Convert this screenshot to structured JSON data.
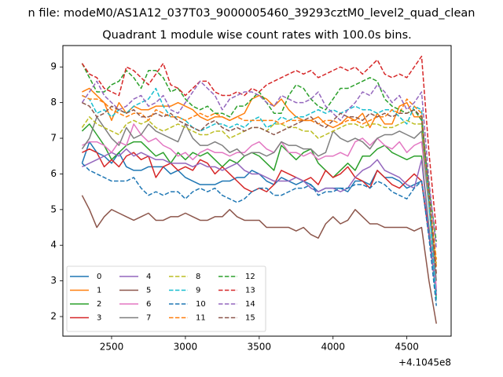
{
  "figure": {
    "suptitle": "n file: modeM0/AS1A12_037T03_9000005460_39293cztM0_level2_quad_clean",
    "background": "#ffffff"
  },
  "chart_data": {
    "type": "line",
    "title": "Quadrant 1 module wise count rates with 100.0s bins.",
    "xlabel": "",
    "ylabel": "",
    "x_offset_label": "+4.1045e8",
    "xlim": [
      2170,
      4800
    ],
    "ylim": [
      1.45,
      9.6
    ],
    "xticks": [
      2500,
      3000,
      3500,
      4000,
      4500
    ],
    "yticks": [
      2,
      3,
      4,
      5,
      6,
      7,
      8,
      9
    ],
    "grid": false,
    "legend_position": "lower-left",
    "legend_columns": 4,
    "x": [
      2300,
      2350,
      2400,
      2450,
      2500,
      2550,
      2600,
      2650,
      2700,
      2750,
      2800,
      2850,
      2900,
      2950,
      3000,
      3050,
      3100,
      3150,
      3200,
      3250,
      3300,
      3350,
      3400,
      3450,
      3500,
      3550,
      3600,
      3650,
      3700,
      3750,
      3800,
      3850,
      3900,
      3950,
      4000,
      4050,
      4100,
      4150,
      4200,
      4250,
      4300,
      4350,
      4400,
      4450,
      4500,
      4550,
      4600,
      4650,
      4700
    ],
    "series": [
      {
        "name": "0",
        "color": "#1f77b4",
        "style": "solid",
        "values": [
          6.3,
          6.9,
          6.6,
          6.5,
          6.3,
          6.6,
          6.2,
          6.1,
          6.1,
          6.2,
          6.2,
          6.2,
          6.0,
          6.1,
          5.9,
          5.8,
          5.7,
          5.7,
          5.7,
          5.8,
          5.8,
          5.9,
          5.9,
          6.1,
          6.0,
          5.8,
          5.7,
          5.9,
          5.8,
          5.7,
          5.8,
          5.7,
          5.5,
          5.6,
          5.6,
          5.6,
          5.5,
          5.8,
          5.8,
          5.7,
          6.1,
          5.9,
          5.9,
          5.8,
          5.6,
          5.7,
          5.8,
          4.3,
          2.7
        ]
      },
      {
        "name": "1",
        "color": "#ff7f0e",
        "style": "solid",
        "values": [
          8.3,
          8.4,
          8.2,
          8.0,
          7.5,
          8.0,
          7.7,
          7.9,
          7.8,
          7.8,
          7.9,
          7.9,
          7.9,
          8.0,
          7.9,
          7.8,
          7.6,
          7.5,
          7.6,
          7.6,
          7.5,
          7.6,
          7.7,
          8.1,
          8.2,
          8.1,
          7.9,
          8.1,
          7.8,
          7.6,
          7.5,
          7.5,
          7.6,
          7.4,
          7.3,
          7.4,
          7.6,
          7.5,
          7.7,
          7.3,
          7.7,
          7.4,
          7.4,
          7.9,
          8.0,
          7.6,
          7.6,
          5.3,
          3.4
        ]
      },
      {
        "name": "2",
        "color": "#2ca02c",
        "style": "solid",
        "values": [
          7.2,
          7.4,
          7.1,
          6.8,
          6.4,
          6.6,
          6.8,
          6.9,
          6.9,
          6.7,
          6.5,
          6.6,
          6.3,
          6.6,
          6.4,
          6.6,
          6.5,
          6.6,
          6.4,
          6.2,
          6.4,
          6.3,
          6.5,
          6.6,
          6.5,
          6.3,
          6.1,
          6.8,
          6.6,
          6.4,
          6.6,
          6.7,
          6.3,
          6.1,
          5.9,
          6.1,
          6.3,
          6.1,
          6.5,
          6.5,
          6.7,
          6.8,
          6.6,
          6.5,
          6.4,
          6.5,
          6.5,
          4.5,
          2.5
        ]
      },
      {
        "name": "3",
        "color": "#d62728",
        "style": "solid",
        "values": [
          6.6,
          6.7,
          6.6,
          6.2,
          6.4,
          6.2,
          6.5,
          6.6,
          6.4,
          6.5,
          5.9,
          6.2,
          6.3,
          6.1,
          6.2,
          6.1,
          6.4,
          6.3,
          6.0,
          6.2,
          6.0,
          5.8,
          5.6,
          5.5,
          5.6,
          5.5,
          5.7,
          6.1,
          6.0,
          5.9,
          5.8,
          5.9,
          5.7,
          6.1,
          5.9,
          6.0,
          6.2,
          5.9,
          5.8,
          5.6,
          6.1,
          5.9,
          5.7,
          5.6,
          5.8,
          6.0,
          5.8,
          4.3,
          2.6
        ]
      },
      {
        "name": "4",
        "color": "#9467bd",
        "style": "solid",
        "values": [
          6.2,
          6.3,
          6.4,
          6.5,
          6.6,
          6.5,
          6.7,
          6.5,
          6.6,
          6.5,
          6.4,
          6.4,
          6.3,
          6.3,
          6.3,
          6.2,
          6.3,
          6.2,
          6.2,
          6.1,
          6.2,
          6.3,
          6.1,
          6.0,
          6.0,
          5.9,
          5.8,
          5.8,
          5.8,
          5.9,
          5.8,
          5.6,
          5.5,
          5.6,
          5.6,
          5.5,
          5.6,
          5.9,
          6.1,
          6.2,
          6.4,
          6.1,
          6.0,
          5.9,
          5.7,
          5.6,
          6.4,
          4.4,
          2.6
        ]
      },
      {
        "name": "5",
        "color": "#8c564b",
        "style": "solid",
        "values": [
          5.4,
          5.0,
          4.5,
          4.8,
          5.0,
          4.9,
          4.8,
          4.7,
          4.8,
          4.9,
          4.7,
          4.7,
          4.8,
          4.8,
          4.9,
          4.8,
          4.7,
          4.7,
          4.8,
          4.8,
          5.0,
          4.8,
          4.7,
          4.7,
          4.7,
          4.5,
          4.5,
          4.5,
          4.5,
          4.4,
          4.5,
          4.3,
          4.2,
          4.6,
          4.8,
          4.6,
          4.7,
          5.0,
          4.8,
          4.6,
          4.6,
          4.5,
          4.5,
          4.5,
          4.5,
          4.4,
          4.5,
          3.0,
          1.8
        ]
      },
      {
        "name": "6",
        "color": "#e377c2",
        "style": "solid",
        "values": [
          6.8,
          6.9,
          6.9,
          6.8,
          6.6,
          6.9,
          6.8,
          7.4,
          7.1,
          6.9,
          7.0,
          6.8,
          6.7,
          6.5,
          6.6,
          6.4,
          6.6,
          6.7,
          6.6,
          6.6,
          6.5,
          6.6,
          6.6,
          6.8,
          6.9,
          6.7,
          6.6,
          6.9,
          6.6,
          6.6,
          6.5,
          6.6,
          6.4,
          6.5,
          6.5,
          6.6,
          6.5,
          6.9,
          7.0,
          6.8,
          7.0,
          6.8,
          6.7,
          6.9,
          6.6,
          6.8,
          6.9,
          5.1,
          2.8
        ]
      },
      {
        "name": "7",
        "color": "#7f7f7f",
        "style": "solid",
        "values": [
          6.7,
          7.0,
          7.6,
          7.3,
          7.0,
          6.8,
          7.3,
          7.0,
          7.1,
          7.4,
          7.2,
          7.1,
          7.0,
          6.9,
          7.4,
          7.0,
          6.8,
          6.8,
          6.9,
          6.8,
          6.6,
          6.7,
          6.5,
          6.6,
          6.6,
          6.5,
          6.6,
          6.9,
          6.8,
          6.8,
          6.7,
          6.7,
          6.5,
          6.6,
          7.2,
          7.0,
          6.9,
          7.0,
          6.9,
          6.7,
          7.0,
          7.1,
          7.1,
          7.2,
          7.1,
          7.0,
          7.2,
          5.1,
          3.0
        ]
      },
      {
        "name": "8",
        "color": "#bcbd22",
        "style": "dashed",
        "values": [
          7.3,
          7.6,
          7.4,
          7.3,
          7.2,
          7.1,
          7.4,
          7.5,
          7.4,
          7.5,
          7.3,
          7.2,
          7.3,
          7.4,
          7.3,
          7.2,
          7.1,
          7.1,
          7.2,
          7.2,
          7.0,
          7.1,
          7.2,
          7.3,
          7.3,
          7.2,
          7.4,
          7.4,
          7.3,
          7.3,
          7.2,
          7.2,
          7.0,
          7.1,
          7.2,
          7.3,
          7.4,
          7.4,
          7.3,
          7.4,
          7.4,
          7.3,
          7.3,
          7.4,
          7.5,
          7.4,
          7.4,
          5.3,
          3.5
        ]
      },
      {
        "name": "9",
        "color": "#17becf",
        "style": "dashed",
        "values": [
          8.2,
          8.1,
          7.7,
          7.8,
          7.6,
          7.8,
          7.7,
          7.9,
          8.0,
          8.1,
          8.4,
          7.9,
          7.6,
          7.6,
          7.5,
          7.3,
          7.2,
          7.3,
          7.4,
          7.4,
          7.3,
          7.4,
          7.3,
          7.5,
          7.6,
          7.3,
          7.4,
          7.6,
          7.5,
          7.6,
          7.6,
          7.7,
          7.8,
          7.7,
          7.8,
          7.7,
          7.8,
          7.9,
          7.8,
          7.8,
          7.7,
          7.8,
          7.8,
          7.6,
          7.4,
          7.9,
          7.8,
          5.2,
          2.4
        ]
      },
      {
        "name": "10",
        "color": "#1f77b4",
        "style": "dashed",
        "values": [
          6.3,
          6.1,
          6.0,
          5.9,
          5.8,
          5.8,
          5.8,
          5.9,
          5.6,
          5.4,
          5.5,
          5.4,
          5.5,
          5.5,
          5.3,
          5.5,
          5.6,
          5.5,
          5.6,
          5.4,
          5.3,
          5.2,
          5.3,
          5.5,
          5.6,
          5.6,
          5.4,
          5.4,
          5.5,
          5.6,
          5.6,
          5.7,
          5.4,
          5.5,
          5.5,
          5.6,
          5.6,
          5.7,
          5.7,
          5.6,
          5.8,
          5.7,
          5.5,
          5.4,
          5.3,
          5.6,
          5.8,
          4.2,
          2.3
        ]
      },
      {
        "name": "11",
        "color": "#ff7f0e",
        "style": "dashed",
        "values": [
          8.2,
          8.1,
          8.1,
          8.0,
          7.8,
          7.7,
          7.6,
          7.7,
          7.7,
          7.5,
          7.8,
          7.7,
          7.6,
          7.6,
          7.5,
          7.6,
          7.7,
          7.6,
          7.7,
          7.6,
          7.5,
          7.6,
          7.5,
          7.5,
          7.5,
          7.5,
          7.5,
          7.4,
          7.5,
          7.5,
          7.5,
          7.5,
          7.4,
          7.5,
          7.5,
          7.4,
          7.5,
          7.5,
          7.4,
          7.5,
          7.6,
          7.6,
          7.8,
          7.7,
          8.1,
          7.9,
          7.7,
          5.4,
          3.6
        ]
      },
      {
        "name": "12",
        "color": "#2ca02c",
        "style": "dashed",
        "values": [
          9.1,
          8.7,
          8.3,
          8.3,
          8.5,
          8.6,
          8.9,
          8.7,
          8.4,
          8.9,
          8.9,
          8.7,
          8.3,
          8.4,
          8.1,
          7.9,
          7.8,
          7.9,
          7.7,
          7.7,
          7.6,
          7.9,
          7.9,
          8.1,
          8.3,
          8.0,
          7.7,
          7.7,
          8.2,
          8.5,
          8.4,
          8.1,
          7.9,
          7.8,
          8.1,
          8.4,
          8.4,
          8.5,
          8.6,
          8.7,
          8.6,
          8.1,
          7.9,
          7.8,
          7.7,
          7.8,
          7.5,
          5.6,
          4.1
        ]
      },
      {
        "name": "13",
        "color": "#d62728",
        "style": "dashed",
        "values": [
          9.1,
          8.8,
          8.7,
          8.4,
          8.3,
          8.2,
          9.0,
          8.9,
          8.7,
          8.5,
          8.8,
          9.1,
          8.5,
          8.4,
          8.2,
          8.4,
          8.6,
          8.6,
          8.3,
          8.2,
          8.2,
          8.3,
          8.2,
          8.4,
          8.3,
          8.5,
          8.6,
          8.7,
          8.8,
          8.9,
          8.8,
          8.9,
          8.7,
          8.8,
          8.9,
          9.0,
          8.9,
          9.0,
          8.8,
          9.0,
          9.2,
          8.8,
          8.7,
          8.8,
          8.7,
          9.0,
          9.3,
          6.6,
          4.4
        ]
      },
      {
        "name": "14",
        "color": "#9467bd",
        "style": "dashed",
        "values": [
          8.0,
          8.3,
          8.6,
          8.2,
          8.0,
          7.8,
          7.9,
          8.1,
          8.2,
          7.9,
          8.0,
          8.2,
          7.8,
          7.7,
          8.0,
          8.3,
          8.6,
          8.4,
          8.2,
          7.8,
          8.1,
          8.2,
          8.3,
          8.3,
          8.2,
          8.0,
          7.9,
          8.2,
          8.1,
          8.0,
          8.0,
          8.1,
          8.3,
          7.9,
          7.7,
          7.5,
          7.8,
          8.0,
          8.3,
          8.2,
          8.5,
          8.3,
          8.0,
          8.2,
          7.8,
          8.0,
          8.3,
          5.8,
          3.9
        ]
      },
      {
        "name": "15",
        "color": "#8c564b",
        "style": "dashed",
        "values": [
          8.0,
          7.9,
          7.6,
          7.7,
          7.9,
          7.8,
          7.7,
          7.8,
          7.6,
          7.6,
          7.7,
          7.6,
          7.7,
          7.5,
          7.4,
          7.3,
          7.2,
          7.4,
          7.5,
          7.3,
          7.2,
          7.3,
          7.2,
          7.3,
          7.3,
          7.2,
          7.1,
          7.2,
          7.3,
          7.4,
          7.5,
          7.6,
          7.4,
          7.3,
          7.5,
          7.7,
          7.6,
          7.6,
          7.5,
          7.7,
          7.6,
          7.7,
          7.6,
          7.7,
          7.7,
          7.8,
          7.6,
          5.5,
          3.2
        ]
      }
    ]
  }
}
